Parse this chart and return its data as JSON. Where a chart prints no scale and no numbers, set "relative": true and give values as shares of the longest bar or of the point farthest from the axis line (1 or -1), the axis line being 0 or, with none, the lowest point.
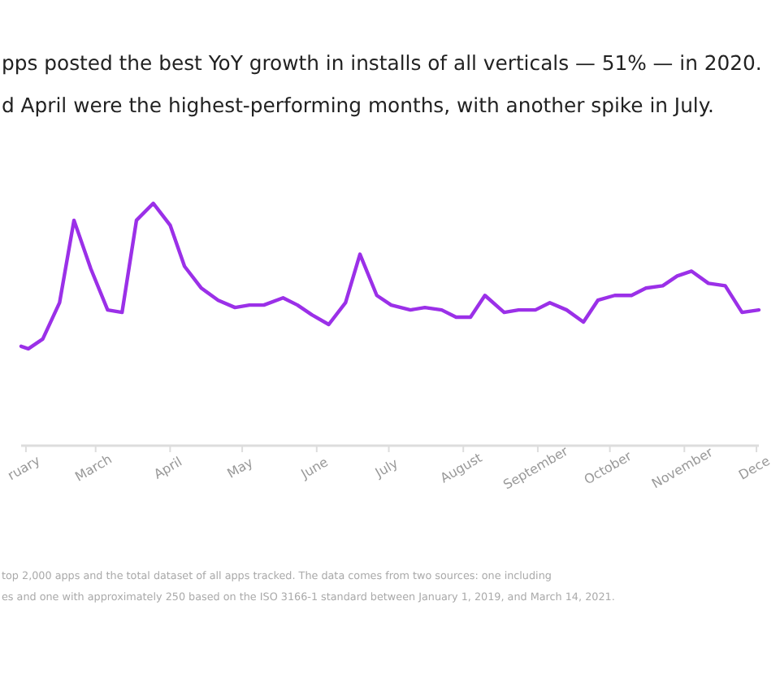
{
  "chart_data": {
    "type": "line",
    "title": "pps posted the best YoY growth in installs of all verticals — 51% — in 2020.",
    "subtitle": "d April were the highest-performing months, with another spike in July.",
    "relative": true,
    "x": [
      "2020-01-30",
      "2020-02-02",
      "2020-02-08",
      "2020-02-15",
      "2020-02-21",
      "2020-02-28",
      "2020-03-06",
      "2020-03-12",
      "2020-03-18",
      "2020-03-25",
      "2020-04-01",
      "2020-04-07",
      "2020-04-14",
      "2020-04-21",
      "2020-04-28",
      "2020-05-04",
      "2020-05-10",
      "2020-05-18",
      "2020-05-24",
      "2020-05-30",
      "2020-06-06",
      "2020-06-13",
      "2020-06-19",
      "2020-06-26",
      "2020-07-02",
      "2020-07-10",
      "2020-07-16",
      "2020-07-23",
      "2020-07-29",
      "2020-08-04",
      "2020-08-10",
      "2020-08-18",
      "2020-08-24",
      "2020-08-31",
      "2020-09-06",
      "2020-09-13",
      "2020-09-20",
      "2020-09-26",
      "2020-10-03",
      "2020-10-10",
      "2020-10-16",
      "2020-10-23",
      "2020-10-29",
      "2020-11-04",
      "2020-11-11",
      "2020-11-18",
      "2020-11-25",
      "2020-12-02"
    ],
    "xlim": [
      "2020-01-30",
      "2020-12-02"
    ],
    "xticks": [
      {
        "value": "2020-02-01",
        "label": "ruary"
      },
      {
        "value": "2020-03-01",
        "label": "March"
      },
      {
        "value": "2020-04-01",
        "label": "April"
      },
      {
        "value": "2020-05-01",
        "label": "May"
      },
      {
        "value": "2020-06-01",
        "label": "June"
      },
      {
        "value": "2020-07-01",
        "label": "July"
      },
      {
        "value": "2020-08-01",
        "label": "August"
      },
      {
        "value": "2020-09-01",
        "label": "September"
      },
      {
        "value": "2020-10-01",
        "label": "October"
      },
      {
        "value": "2020-11-01",
        "label": "November"
      },
      {
        "value": "2020-12-01",
        "label": "Dece"
      }
    ],
    "series": [
      {
        "color": "#9b30e8",
        "values": [
          0.41,
          0.4,
          0.44,
          0.59,
          0.93,
          0.73,
          0.56,
          0.55,
          0.93,
          1,
          0.91,
          0.74,
          0.65,
          0.6,
          0.57,
          0.58,
          0.58,
          0.61,
          0.58,
          0.54,
          0.5,
          0.59,
          0.79,
          0.62,
          0.58,
          0.56,
          0.57,
          0.56,
          0.53,
          0.53,
          0.62,
          0.55,
          0.56,
          0.56,
          0.59,
          0.56,
          0.51,
          0.6,
          0.62,
          0.62,
          0.65,
          0.66,
          0.7,
          0.72,
          0.67,
          0.66,
          0.55,
          0.56
        ]
      }
    ],
    "marker": "none",
    "line_style": "solid",
    "annotations": [
      "top 2,000 apps and the total dataset of all apps tracked. The data comes from two sources: one including",
      "es and one with approximately 250 based on the ISO 3166-1 standard between January 1, 2019, and March 14, 2021."
    ]
  }
}
